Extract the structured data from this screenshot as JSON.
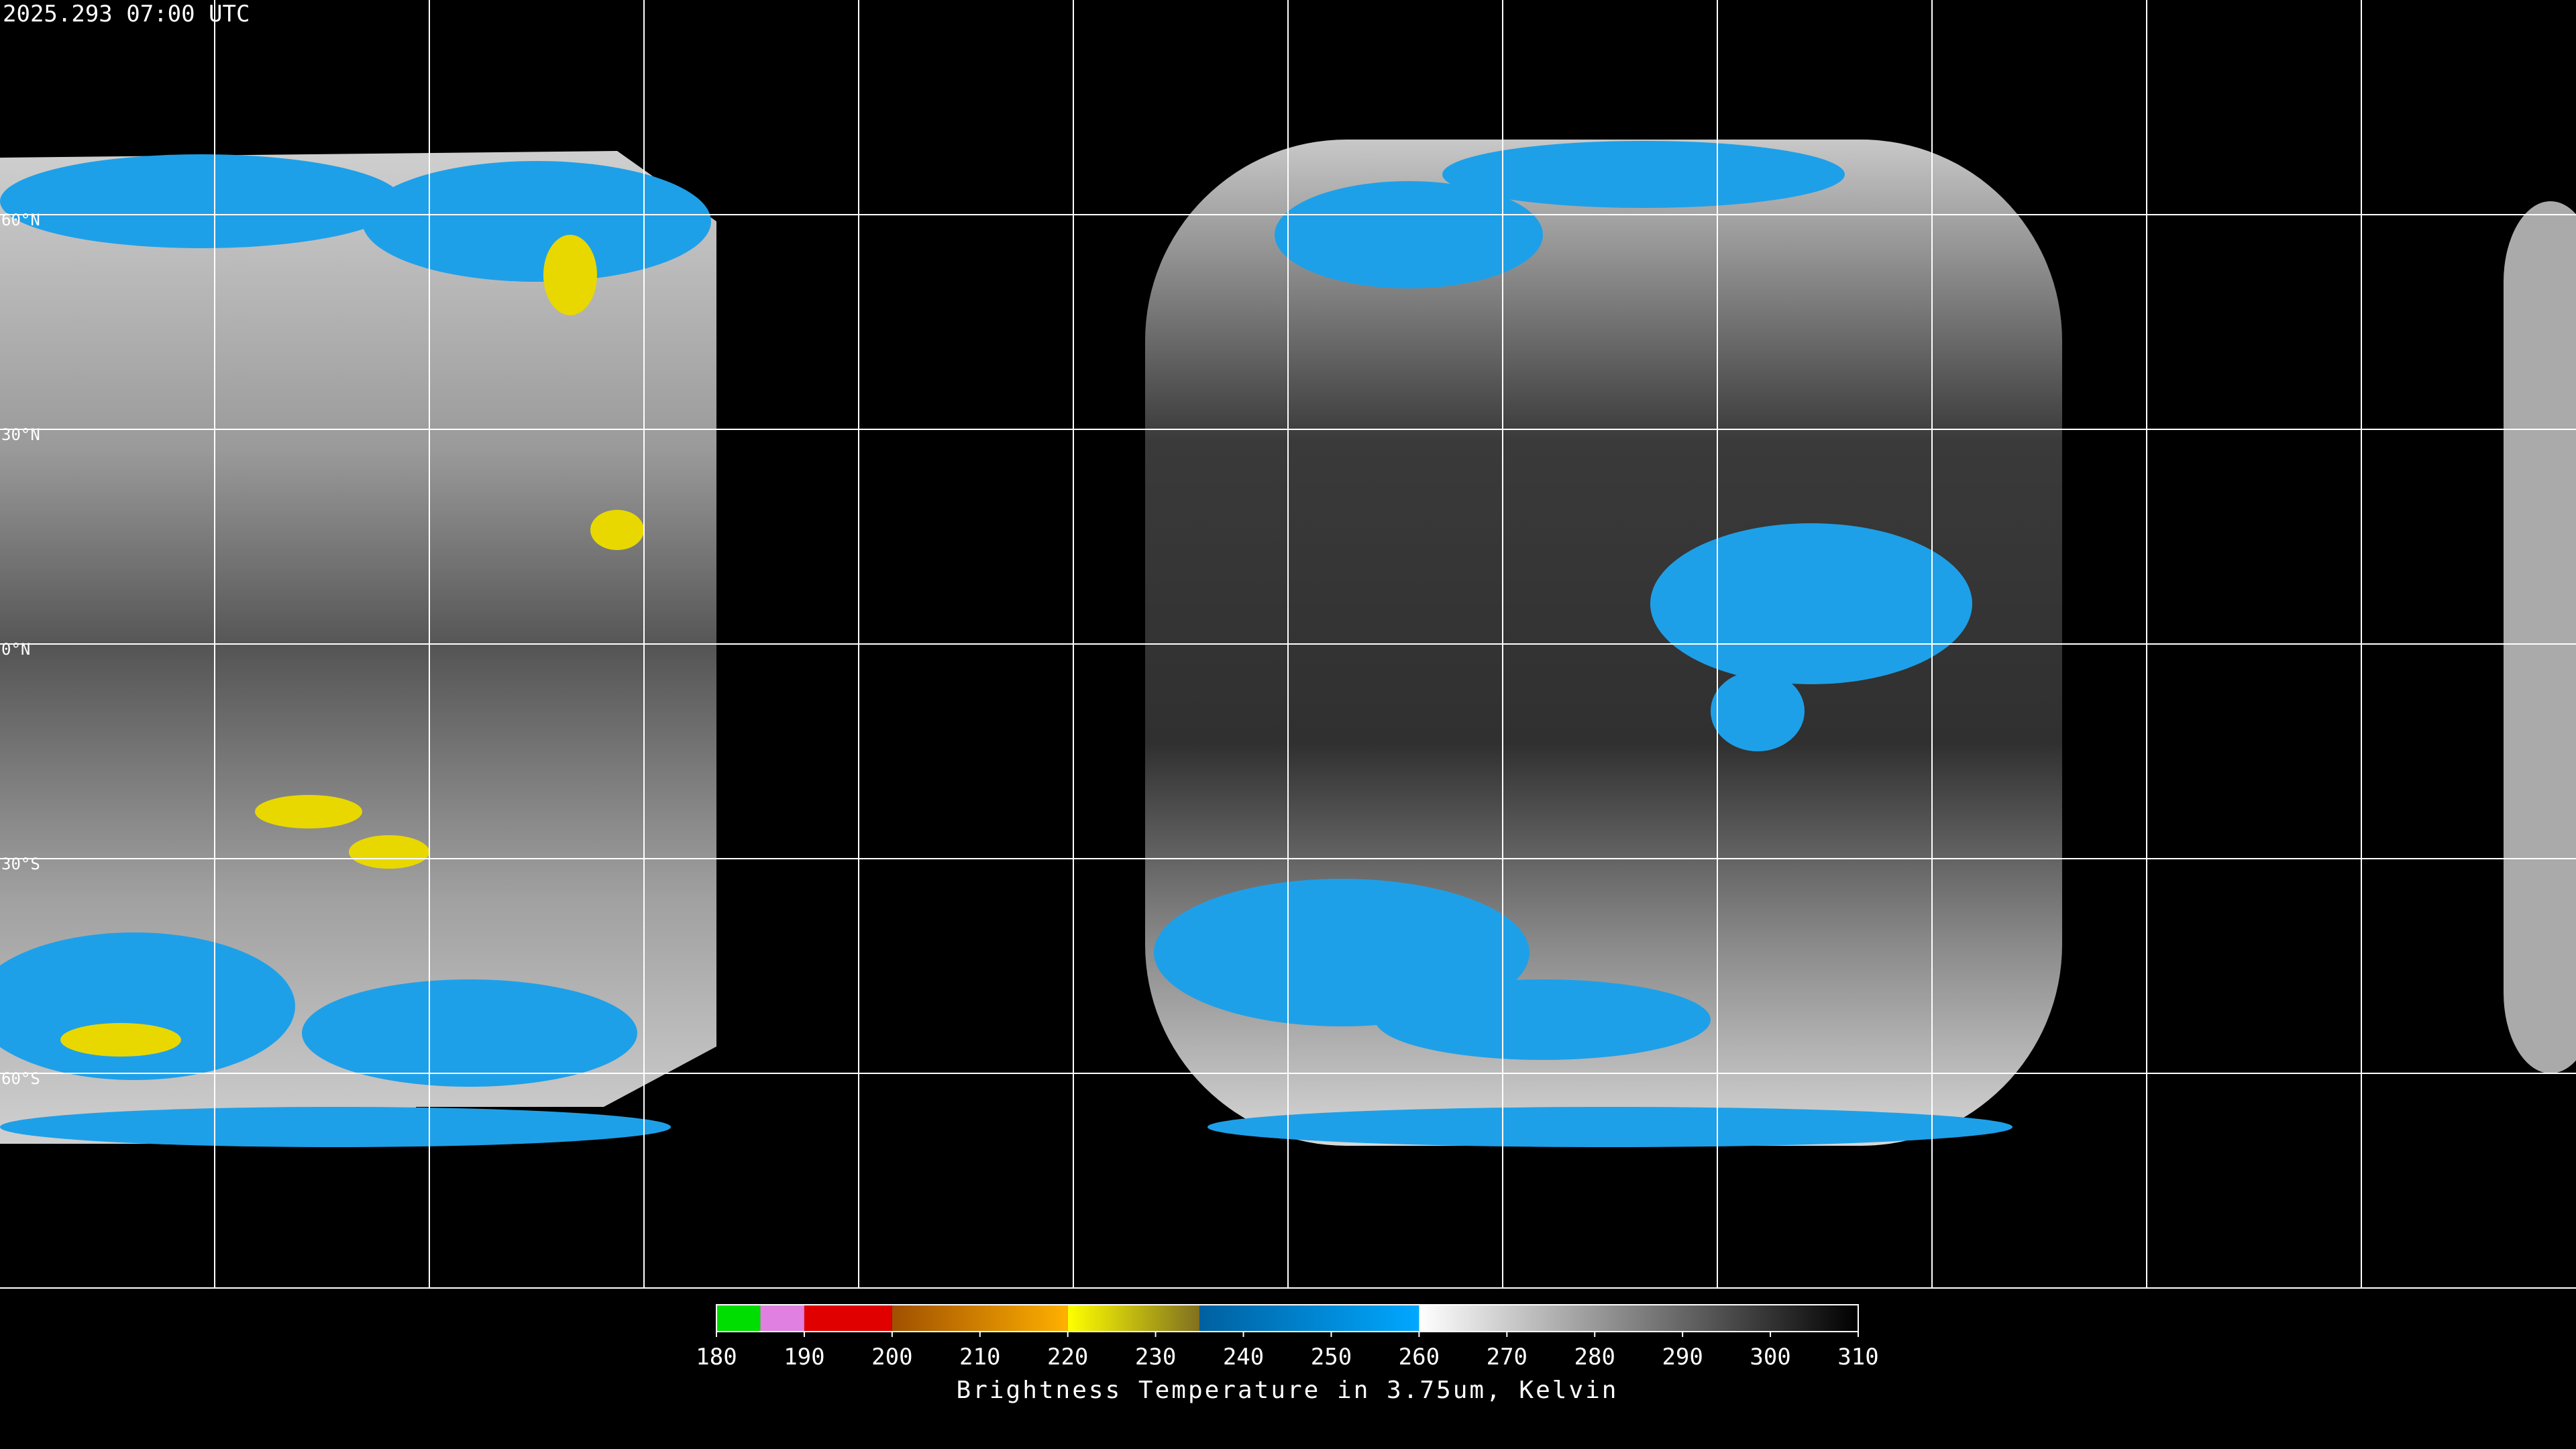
{
  "header": {
    "title": "2025.293 07:00 UTC"
  },
  "map": {
    "lat_labels": [
      "60°N",
      "30°N",
      "0°N",
      "30°S",
      "60°S"
    ]
  },
  "colorbar": {
    "ticks": [
      180,
      190,
      200,
      210,
      220,
      230,
      240,
      250,
      260,
      270,
      280,
      290,
      300,
      310
    ],
    "label": "Brightness Temperature in 3.75um, Kelvin",
    "stops": [
      {
        "from": 180,
        "to": 185,
        "color": "#00dd00",
        "color2": "#00dd00"
      },
      {
        "from": 185,
        "to": 190,
        "color": "#e080e0",
        "color2": "#e080e0"
      },
      {
        "from": 190,
        "to": 200,
        "color": "#e00000",
        "color2": "#e00000"
      },
      {
        "from": 200,
        "to": 220,
        "color": "#a05000",
        "color2": "#ffb000"
      },
      {
        "from": 220,
        "to": 235,
        "color": "#ffff00",
        "color2": "#807020"
      },
      {
        "from": 235,
        "to": 260,
        "color": "#0060a0",
        "color2": "#00a8ff"
      },
      {
        "from": 260,
        "to": 310,
        "color": "#ffffff",
        "color2": "#000000"
      }
    ]
  }
}
